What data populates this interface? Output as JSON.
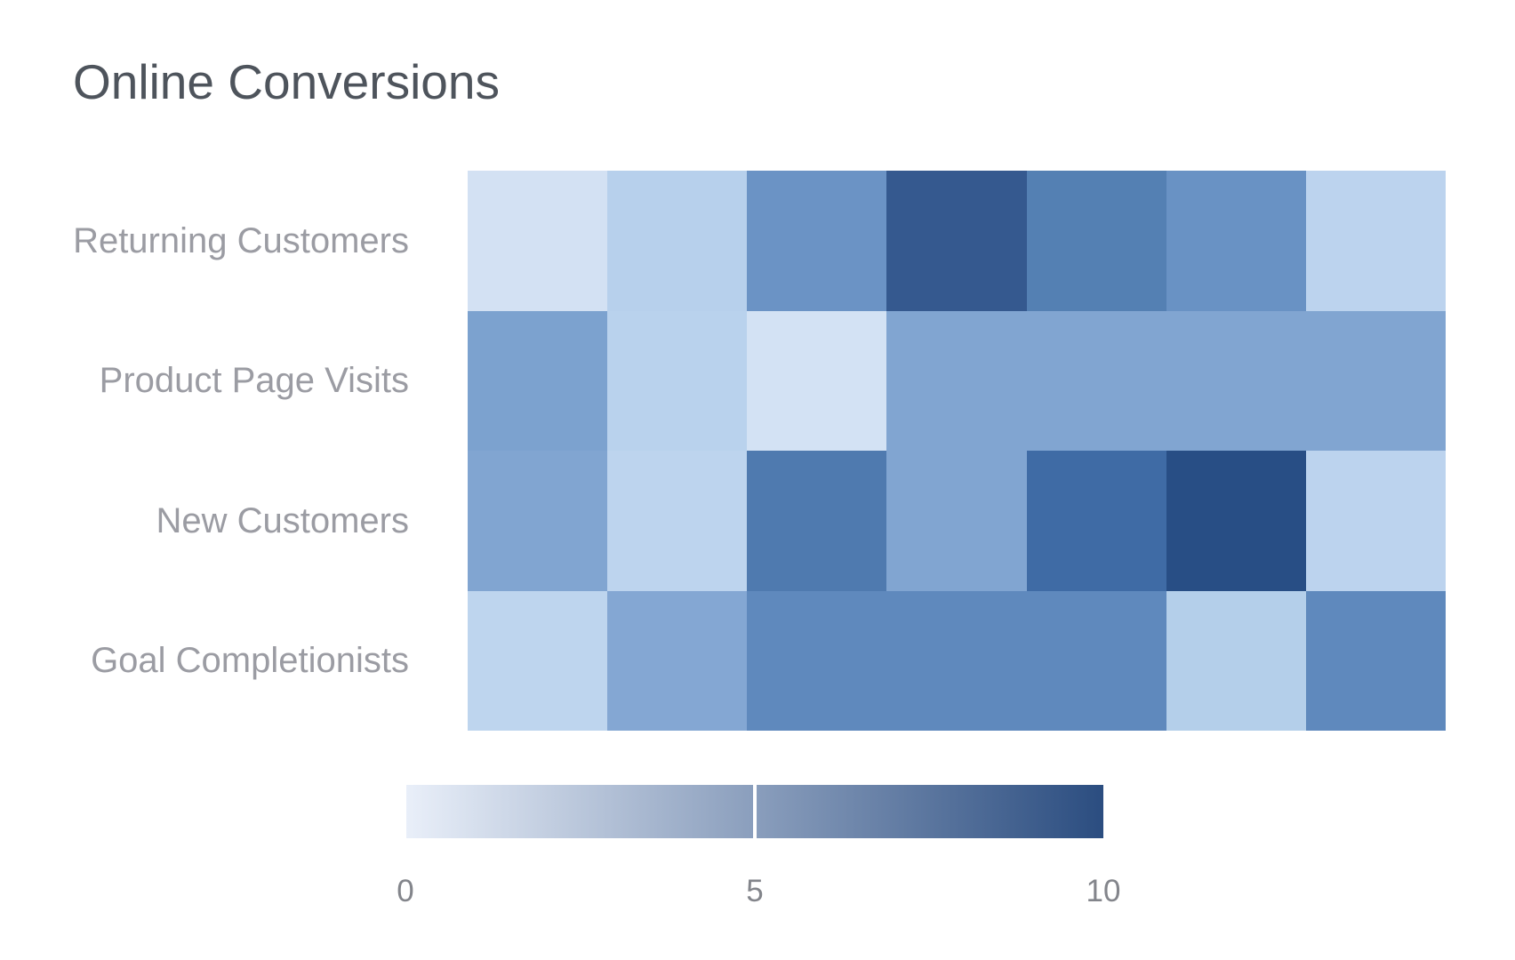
{
  "title": "Online Conversions",
  "colors": {
    "background": "#ffffff",
    "title_text": "#4e545c",
    "row_label_text": "#9b9ca3",
    "tick_text": "#83858b",
    "legend_gradient_start": "#e9eff9",
    "legend_gradient_end": "#2b4d80",
    "legend_divider": "#ffffff"
  },
  "chart_data": {
    "type": "heatmap",
    "title": "Online Conversions",
    "x_axis_labels_visible": false,
    "columns": [
      "",
      "",
      "",
      "",
      "",
      "",
      ""
    ],
    "rows": [
      {
        "label": "Returning Customers",
        "values": [
          1,
          2,
          5,
          9,
          7,
          5,
          2
        ],
        "colors": [
          "#d3e1f3",
          "#b7d0ec",
          "#6b93c5",
          "#35598f",
          "#5480b3",
          "#6992c4",
          "#bcd3ee"
        ]
      },
      {
        "label": "Product Page Visits",
        "values": [
          4,
          2,
          1,
          4,
          4,
          4,
          4
        ],
        "colors": [
          "#7ca2cf",
          "#b9d2ed",
          "#d3e2f4",
          "#81a5d1",
          "#81a5d1",
          "#81a5d1",
          "#81a5d1"
        ]
      },
      {
        "label": "New Customers",
        "values": [
          4,
          2,
          7,
          4,
          8,
          10,
          2
        ],
        "colors": [
          "#81a5d1",
          "#bdd4ee",
          "#4f7aaf",
          "#81a5d1",
          "#3f6ba5",
          "#284e85",
          "#bcd3ee"
        ]
      },
      {
        "label": "Goal Completionists",
        "values": [
          2,
          4,
          6,
          6,
          6,
          2,
          6
        ],
        "colors": [
          "#bed5ee",
          "#84a7d3",
          "#5f89bd",
          "#5f89bd",
          "#5f89bd",
          "#b4cfea",
          "#5f89bd"
        ]
      }
    ],
    "legend": {
      "position": "bottom",
      "min": 0,
      "max": 10,
      "min_label": "0",
      "mid_label": "5",
      "max_label": "10"
    }
  }
}
